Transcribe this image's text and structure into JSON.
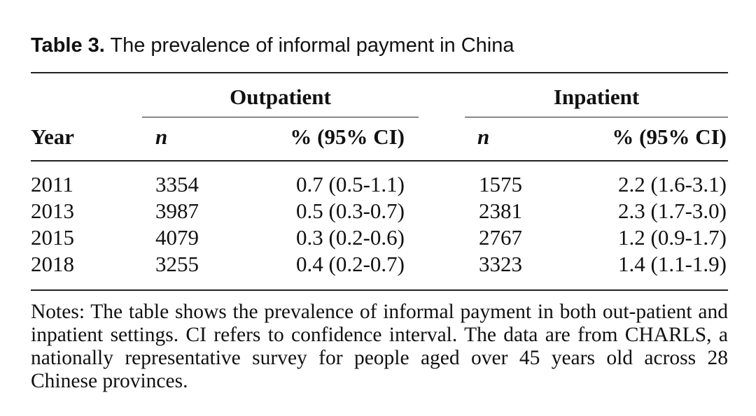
{
  "table": {
    "label": "Table 3.",
    "title": "The prevalence of informal payment in China",
    "group_headers": {
      "outpatient": "Outpatient",
      "inpatient": "Inpatient"
    },
    "column_headers": {
      "year": "Year",
      "out_n": "n",
      "out_pct": "% (95% CI)",
      "in_n": "n",
      "in_pct": "% (95% CI)"
    },
    "rows": [
      {
        "year": "2011",
        "out_n": "3354",
        "out_pct": "0.7 (0.5-1.1)",
        "in_n": "1575",
        "in_pct": "2.2 (1.6-3.1)"
      },
      {
        "year": "2013",
        "out_n": "3987",
        "out_pct": "0.5 (0.3-0.7)",
        "in_n": "2381",
        "in_pct": "2.3 (1.7-3.0)"
      },
      {
        "year": "2015",
        "out_n": "4079",
        "out_pct": "0.3 (0.2-0.6)",
        "in_n": "2767",
        "in_pct": "1.2 (0.9-1.7)"
      },
      {
        "year": "2018",
        "out_n": "3255",
        "out_pct": "0.4 (0.2-0.7)",
        "in_n": "3323",
        "in_pct": "1.4 (1.1-1.9)"
      }
    ],
    "notes": "Notes: The table shows the prevalence of informal payment in both out-patient and inpatient settings. CI refers to confidence interval. The data are from CHARLS, a nationally representative survey for people aged over 45 years old across 28 Chinese provinces."
  }
}
